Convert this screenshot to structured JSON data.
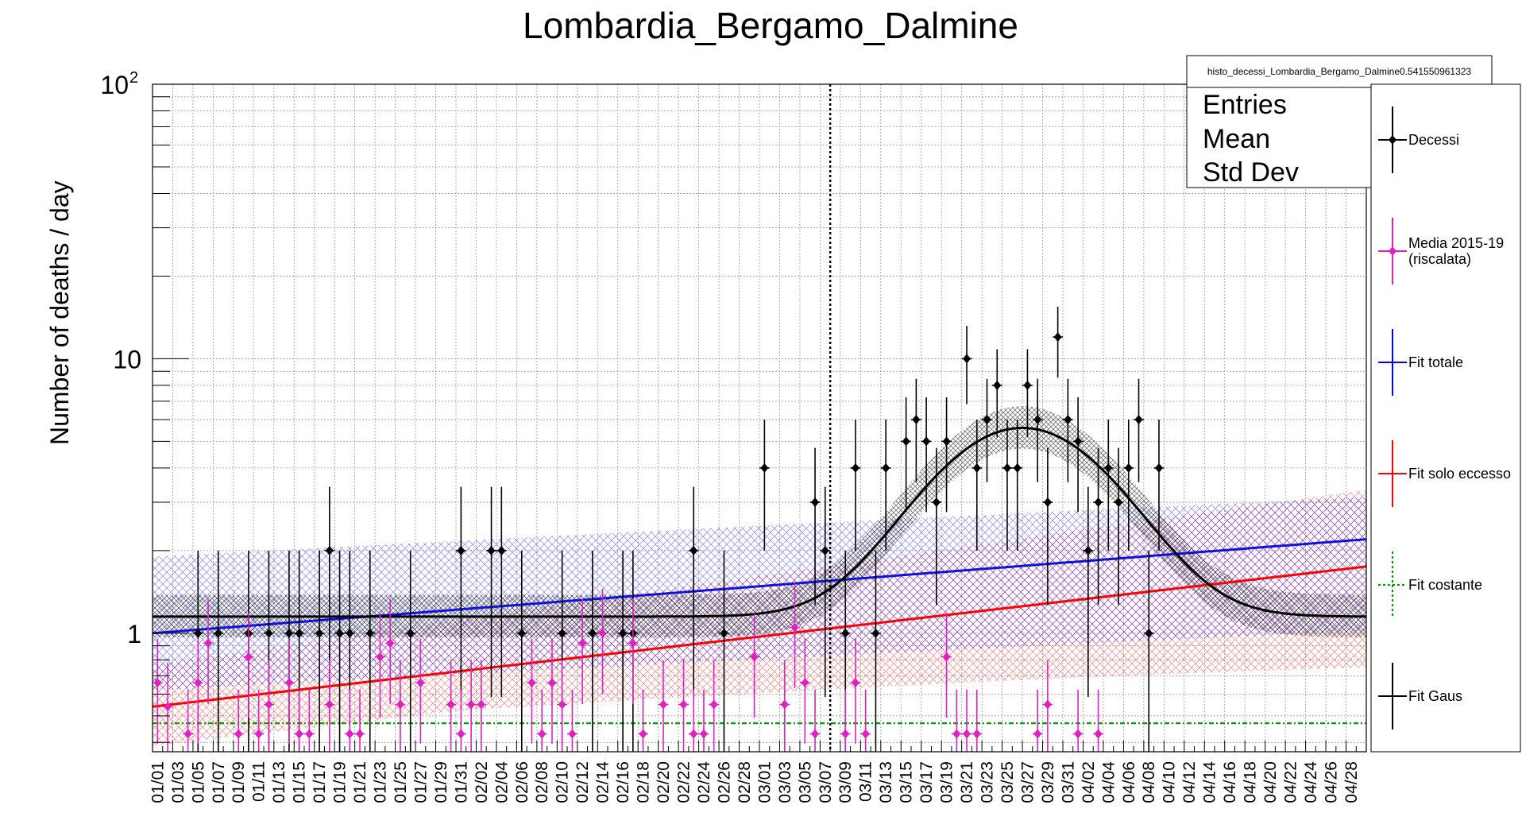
{
  "chart_data": {
    "type": "scatter",
    "title": "Lombardia_Bergamo_Dalmine",
    "ylabel": "Number of deaths / day",
    "xlabel": "",
    "y_scale": "log",
    "ylim": [
      0.37,
      100
    ],
    "y_ticks": [
      {
        "value": 1,
        "label": "1"
      },
      {
        "value": 10,
        "label": "10"
      },
      {
        "value": 100,
        "label": "10",
        "sup": "2"
      }
    ],
    "x_tick_labels": [
      "01/01",
      "01/03",
      "01/05",
      "01/07",
      "01/09",
      "01/11",
      "01/13",
      "01/15",
      "01/17",
      "01/19",
      "01/21",
      "01/23",
      "01/25",
      "01/27",
      "01/29",
      "01/31",
      "02/02",
      "02/04",
      "02/06",
      "02/08",
      "02/10",
      "02/12",
      "02/14",
      "02/16",
      "02/18",
      "02/20",
      "02/22",
      "02/24",
      "02/26",
      "02/28",
      "03/01",
      "03/03",
      "03/05",
      "03/07",
      "03/09",
      "03/11",
      "03/13",
      "03/15",
      "03/17",
      "03/19",
      "03/21",
      "03/23",
      "03/25",
      "03/27",
      "03/29",
      "03/31",
      "04/02",
      "04/04",
      "04/06",
      "04/08",
      "04/10",
      "04/12",
      "04/14",
      "04/16",
      "04/18",
      "04/20",
      "04/22",
      "04/24",
      "04/26",
      "04/28"
    ],
    "n_days": 120,
    "vertical_line_day": 67,
    "grid": true,
    "stats_box": {
      "name": "histo_decessi_Lombardia_Bergamo_Dalmine0.541550961323",
      "rows": [
        "Entries",
        "Mean",
        "Std Dev"
      ]
    },
    "legend": {
      "placement": "right",
      "entries": [
        {
          "label": "Decessi",
          "color": "#000000",
          "marker": "diamond"
        },
        {
          "label": "Media 2015-19",
          "label2": "(riscalata)",
          "color": "#e020c0",
          "marker": "diamond"
        },
        {
          "label": "Fit totale",
          "color": "#0000ff",
          "marker": "line"
        },
        {
          "label": "Fit solo eccesso",
          "color": "#ff0000",
          "marker": "line"
        },
        {
          "label": "Fit costante",
          "color": "#00a000",
          "marker": "dotted"
        },
        {
          "label": "Fit Gaus",
          "color": "#000000",
          "marker": "line"
        }
      ]
    },
    "series": [
      {
        "name": "Decessi",
        "color": "#000000",
        "points": [
          [
            4,
            1
          ],
          [
            6,
            1
          ],
          [
            9,
            1
          ],
          [
            11,
            1
          ],
          [
            13,
            1
          ],
          [
            14,
            1
          ],
          [
            16,
            1
          ],
          [
            17,
            2
          ],
          [
            18,
            1
          ],
          [
            19,
            1
          ],
          [
            21,
            1
          ],
          [
            25,
            1
          ],
          [
            30,
            2
          ],
          [
            33,
            2
          ],
          [
            34,
            2
          ],
          [
            36,
            1
          ],
          [
            40,
            1
          ],
          [
            43,
            1
          ],
          [
            46,
            1
          ],
          [
            47,
            1
          ],
          [
            53,
            2
          ],
          [
            56,
            1
          ],
          [
            60,
            4
          ],
          [
            65,
            3
          ],
          [
            66,
            2
          ],
          [
            68,
            1
          ],
          [
            69,
            4
          ],
          [
            71,
            1
          ],
          [
            72,
            4
          ],
          [
            74,
            5
          ],
          [
            75,
            6
          ],
          [
            76,
            5
          ],
          [
            77,
            3
          ],
          [
            78,
            5
          ],
          [
            80,
            10
          ],
          [
            81,
            4
          ],
          [
            82,
            6
          ],
          [
            83,
            8
          ],
          [
            84,
            4
          ],
          [
            85,
            4
          ],
          [
            86,
            8
          ],
          [
            87,
            6
          ],
          [
            88,
            3
          ],
          [
            89,
            12
          ],
          [
            90,
            6
          ],
          [
            91,
            5
          ],
          [
            92,
            2
          ],
          [
            93,
            3
          ],
          [
            94,
            4
          ],
          [
            95,
            3
          ],
          [
            96,
            4
          ],
          [
            97,
            6
          ],
          [
            98,
            1
          ],
          [
            99,
            4
          ]
        ]
      },
      {
        "name": "Media 2015-19",
        "color": "#e020c0",
        "points": [
          [
            0,
            0.66
          ],
          [
            1,
            0.54
          ],
          [
            3,
            0.43
          ],
          [
            4,
            0.66
          ],
          [
            5,
            0.92
          ],
          [
            8,
            0.43
          ],
          [
            9,
            0.82
          ],
          [
            10,
            0.43
          ],
          [
            11,
            0.55
          ],
          [
            13,
            0.66
          ],
          [
            14,
            0.43
          ],
          [
            15,
            0.43
          ],
          [
            17,
            0.55
          ],
          [
            19,
            0.43
          ],
          [
            20,
            0.43
          ],
          [
            22,
            0.82
          ],
          [
            23,
            0.92
          ],
          [
            24,
            0.55
          ],
          [
            26,
            0.66
          ],
          [
            29,
            0.55
          ],
          [
            30,
            0.43
          ],
          [
            31,
            0.55
          ],
          [
            32,
            0.55
          ],
          [
            37,
            0.66
          ],
          [
            38,
            0.43
          ],
          [
            39,
            0.66
          ],
          [
            40,
            0.55
          ],
          [
            41,
            0.43
          ],
          [
            42,
            0.92
          ],
          [
            44,
            1.0
          ],
          [
            47,
            0.92
          ],
          [
            48,
            0.43
          ],
          [
            50,
            0.55
          ],
          [
            52,
            0.55
          ],
          [
            53,
            0.43
          ],
          [
            54,
            0.43
          ],
          [
            55,
            0.55
          ],
          [
            59,
            0.82
          ],
          [
            62,
            0.55
          ],
          [
            63,
            1.05
          ],
          [
            64,
            0.66
          ],
          [
            65,
            0.43
          ],
          [
            68,
            0.43
          ],
          [
            69,
            0.66
          ],
          [
            70,
            0.43
          ],
          [
            78,
            0.82
          ],
          [
            79,
            0.43
          ],
          [
            80,
            0.43
          ],
          [
            81,
            0.43
          ],
          [
            87,
            0.43
          ],
          [
            88,
            0.55
          ],
          [
            91,
            0.43
          ],
          [
            93,
            0.43
          ]
        ]
      }
    ]
  }
}
